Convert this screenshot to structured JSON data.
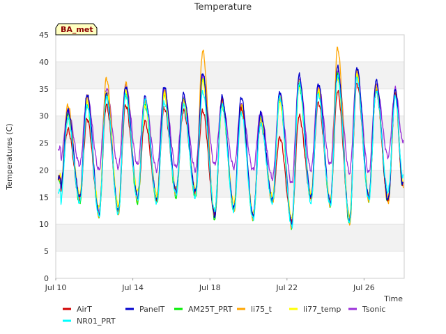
{
  "chart_data": {
    "type": "line",
    "title": "Temperature",
    "xlabel": "Time",
    "ylabel": "Temperatures (C)",
    "badge": "BA_met",
    "xlim": [
      "2024-07-10",
      "2024-07-28T02:00"
    ],
    "ylim": [
      0,
      45
    ],
    "yticks": [
      0,
      5,
      10,
      15,
      20,
      25,
      30,
      35,
      40,
      45
    ],
    "xticks": [
      {
        "value": "2024-07-10",
        "label": "Jul 10"
      },
      {
        "value": "2024-07-14",
        "label": "Jul 14"
      },
      {
        "value": "2024-07-18",
        "label": "Jul 18"
      },
      {
        "value": "2024-07-22",
        "label": "Jul 22"
      },
      {
        "value": "2024-07-26",
        "label": "Jul 26"
      }
    ],
    "grid": "horizontal bands",
    "legend_position": "bottom",
    "days": [
      "2024-07-10",
      "2024-07-11",
      "2024-07-12",
      "2024-07-13",
      "2024-07-14",
      "2024-07-15",
      "2024-07-16",
      "2024-07-17",
      "2024-07-18",
      "2024-07-19",
      "2024-07-20",
      "2024-07-21",
      "2024-07-22",
      "2024-07-23",
      "2024-07-24",
      "2024-07-25",
      "2024-07-26",
      "2024-07-27"
    ],
    "series": [
      {
        "name": "AirT",
        "color": "#d00000",
        "daily_min": [
          16.5,
          14.5,
          12.0,
          12.5,
          15.0,
          14.5,
          16.0,
          16.0,
          12.0,
          13.0,
          11.5,
          14.5,
          10.5,
          15.0,
          14.0,
          11.0,
          15.0,
          14.5
        ],
        "daily_max": [
          27.5,
          29.5,
          32.0,
          32.0,
          29.0,
          31.5,
          31.0,
          31.0,
          33.0,
          31.5,
          28.5,
          26.0,
          30.0,
          32.5,
          34.5,
          36.0,
          34.5,
          34.0
        ]
      },
      {
        "name": "PanelT",
        "color": "#0000cc",
        "daily_min": [
          16.5,
          15.0,
          12.0,
          12.5,
          15.0,
          14.5,
          16.0,
          16.0,
          11.5,
          13.0,
          11.5,
          14.5,
          10.0,
          15.0,
          14.0,
          10.5,
          15.0,
          14.5
        ],
        "daily_max": [
          31.0,
          34.0,
          34.0,
          35.5,
          33.5,
          35.5,
          34.0,
          38.0,
          33.5,
          33.5,
          30.5,
          34.5,
          37.5,
          36.0,
          39.0,
          39.0,
          36.5,
          35.0
        ]
      },
      {
        "name": "AM25T_PRT",
        "color": "#00ee00",
        "daily_min": [
          16.0,
          14.0,
          11.5,
          12.0,
          14.0,
          14.0,
          15.0,
          15.0,
          11.0,
          12.5,
          11.0,
          14.0,
          9.5,
          14.5,
          13.5,
          10.0,
          14.5,
          14.0
        ],
        "daily_max": [
          30.0,
          32.0,
          34.0,
          34.0,
          32.0,
          34.0,
          33.0,
          37.0,
          32.0,
          32.0,
          29.5,
          33.0,
          35.5,
          34.5,
          37.5,
          37.5,
          35.0,
          34.0
        ]
      },
      {
        "name": "li75_t",
        "color": "#ffa500",
        "daily_min": [
          16.5,
          14.5,
          11.5,
          12.0,
          14.5,
          14.5,
          15.5,
          15.5,
          11.5,
          12.5,
          11.0,
          14.0,
          9.5,
          14.5,
          13.5,
          10.0,
          14.5,
          14.0
        ],
        "daily_max": [
          32.0,
          33.5,
          37.0,
          36.0,
          33.0,
          34.5,
          33.0,
          42.0,
          33.0,
          32.0,
          29.5,
          33.5,
          36.5,
          35.0,
          42.5,
          38.5,
          35.5,
          34.5
        ]
      },
      {
        "name": "li77_temp",
        "color": "#ffff00",
        "daily_min": [
          17.0,
          15.5,
          13.0,
          13.5,
          16.0,
          15.5,
          16.5,
          16.5,
          12.5,
          14.0,
          12.0,
          15.0,
          11.0,
          15.5,
          14.5,
          11.5,
          15.5,
          15.0
        ],
        "daily_max": [
          30.0,
          32.5,
          34.5,
          34.5,
          32.0,
          34.0,
          32.5,
          36.5,
          32.0,
          31.5,
          29.0,
          32.5,
          35.5,
          34.5,
          37.0,
          37.5,
          35.0,
          34.0
        ]
      },
      {
        "name": "Tsonic",
        "color": "#9b30d9",
        "daily_min": [
          22.0,
          21.0,
          20.0,
          20.5,
          21.0,
          20.0,
          20.5,
          20.0,
          21.0,
          20.5,
          20.0,
          18.5,
          17.5,
          20.0,
          21.0,
          19.5,
          19.5,
          22.5
        ],
        "daily_max": [
          31.0,
          33.5,
          35.0,
          35.5,
          33.0,
          34.5,
          33.5,
          37.0,
          32.5,
          32.0,
          30.5,
          33.5,
          37.0,
          35.5,
          38.5,
          38.0,
          36.0,
          35.0
        ]
      },
      {
        "name": "NR01_PRT",
        "color": "#00ffff",
        "daily_min": [
          14.0,
          14.0,
          11.5,
          12.0,
          14.5,
          14.0,
          15.5,
          15.0,
          12.5,
          12.5,
          11.0,
          14.0,
          9.5,
          14.0,
          13.5,
          10.5,
          14.5,
          16.0
        ],
        "daily_max": [
          29.5,
          32.0,
          33.5,
          34.0,
          33.0,
          32.5,
          32.0,
          34.5,
          32.0,
          30.5,
          28.5,
          33.5,
          36.0,
          34.0,
          37.5,
          37.0,
          34.5,
          33.5
        ]
      }
    ]
  }
}
